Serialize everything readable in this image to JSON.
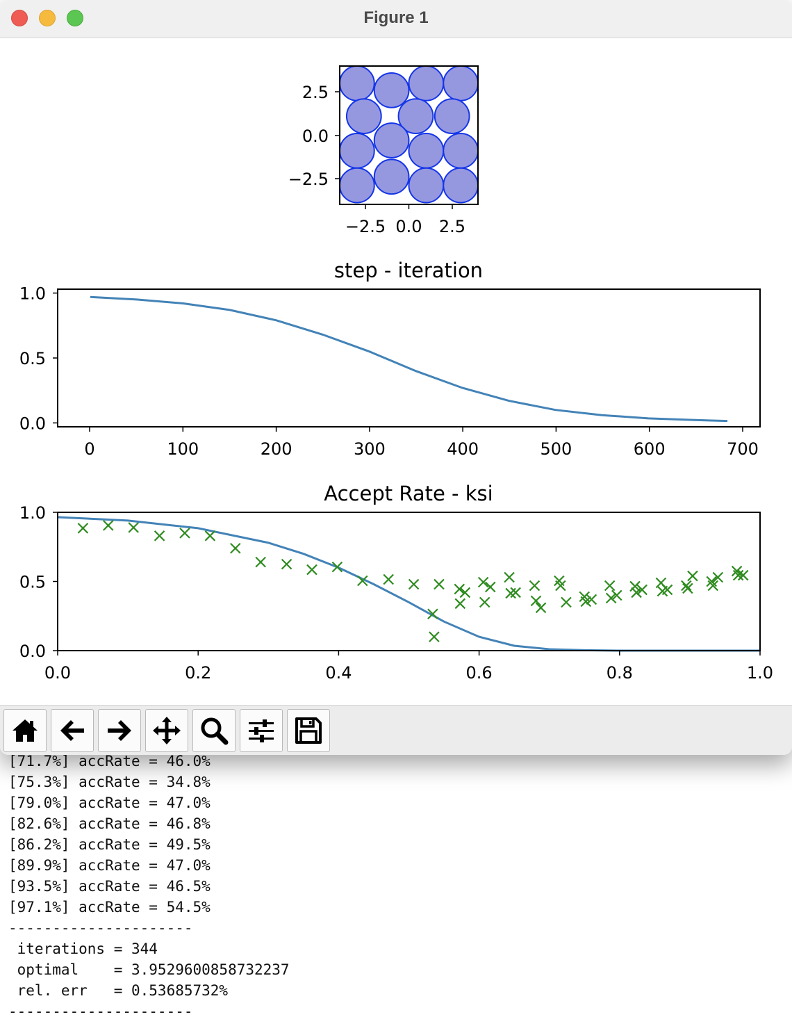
{
  "window": {
    "title": "Figure 1"
  },
  "colors": {
    "bar": "#f0f0f0",
    "line": "#4383b7",
    "disk_fill": "#9598df",
    "disk_edge": "#1535e8",
    "marker": "#2e8b1f"
  },
  "figure": {
    "packing": {
      "xticks": [
        "−2.5",
        "0.0",
        "2.5"
      ],
      "yticks": [
        "2.5",
        "0.0",
        "−2.5"
      ]
    },
    "step_plot": {
      "title": "step - iteration",
      "xticks": [
        "0",
        "100",
        "200",
        "300",
        "400",
        "500",
        "600",
        "700"
      ],
      "yticks": [
        "1.0",
        "0.5",
        "0.0"
      ]
    },
    "accept_plot": {
      "title": "Accept Rate - ksi",
      "xticks": [
        "0.0",
        "0.2",
        "0.4",
        "0.6",
        "0.8",
        "1.0"
      ],
      "yticks": [
        "1.0",
        "0.5",
        "0.0"
      ]
    }
  },
  "chart_data": [
    {
      "type": "scatter",
      "xlim": [
        -4,
        4
      ],
      "ylim": [
        -4,
        4
      ],
      "radius": 1,
      "circles": [
        [
          -3.0,
          3.0
        ],
        [
          -1.0,
          2.6
        ],
        [
          1.0,
          3.0
        ],
        [
          3.0,
          3.0
        ],
        [
          -2.6,
          1.1
        ],
        [
          0.4,
          1.1
        ],
        [
          2.5,
          1.1
        ],
        [
          -3.0,
          -0.9
        ],
        [
          -1.0,
          -0.3
        ],
        [
          1.0,
          -0.9
        ],
        [
          3.0,
          -0.9
        ],
        [
          -1.0,
          -2.4
        ],
        [
          -3.0,
          -2.9
        ],
        [
          1.0,
          -2.9
        ],
        [
          3.0,
          -2.9
        ]
      ]
    },
    {
      "type": "line",
      "title": "step - iteration",
      "xlim": [
        -35,
        720
      ],
      "ylim": [
        -0.03,
        1.03
      ],
      "grid": false,
      "x": [
        0,
        50,
        100,
        150,
        200,
        250,
        300,
        350,
        400,
        450,
        500,
        550,
        600,
        650,
        685
      ],
      "y": [
        0.97,
        0.95,
        0.92,
        0.87,
        0.79,
        0.68,
        0.55,
        0.4,
        0.27,
        0.17,
        0.1,
        0.06,
        0.035,
        0.022,
        0.015
      ]
    },
    {
      "type": "scatter",
      "title": "Accept Rate - ksi",
      "xlim": [
        0,
        1
      ],
      "ylim": [
        0,
        1
      ],
      "grid": false,
      "line": {
        "x": [
          0,
          0.1,
          0.2,
          0.3,
          0.35,
          0.4,
          0.45,
          0.5,
          0.55,
          0.6,
          0.65,
          0.7,
          0.75,
          0.8,
          0.9,
          1.0
        ],
        "y": [
          0.965,
          0.94,
          0.885,
          0.78,
          0.7,
          0.6,
          0.48,
          0.35,
          0.21,
          0.1,
          0.035,
          0.01,
          0.003,
          0.0,
          0.0,
          0.0
        ]
      },
      "points": {
        "x": [
          0.036,
          0.072,
          0.108,
          0.145,
          0.181,
          0.217,
          0.253,
          0.289,
          0.326,
          0.362,
          0.398,
          0.434,
          0.471,
          0.507,
          0.534,
          0.536,
          0.543,
          0.572,
          0.573,
          0.58,
          0.606,
          0.608,
          0.616,
          0.643,
          0.645,
          0.652,
          0.679,
          0.681,
          0.688,
          0.714,
          0.716,
          0.724,
          0.75,
          0.752,
          0.76,
          0.786,
          0.788,
          0.796,
          0.822,
          0.824,
          0.832,
          0.859,
          0.861,
          0.868,
          0.895,
          0.897,
          0.904,
          0.931,
          0.933,
          0.94,
          0.967,
          0.969,
          0.976
        ],
        "y": [
          0.885,
          0.905,
          0.89,
          0.83,
          0.85,
          0.83,
          0.74,
          0.64,
          0.625,
          0.585,
          0.605,
          0.505,
          0.515,
          0.48,
          0.265,
          0.1,
          0.48,
          0.445,
          0.34,
          0.42,
          0.495,
          0.35,
          0.46,
          0.53,
          0.415,
          0.42,
          0.47,
          0.36,
          0.31,
          0.505,
          0.47,
          0.35,
          0.39,
          0.355,
          0.37,
          0.47,
          0.38,
          0.4,
          0.465,
          0.42,
          0.44,
          0.49,
          0.43,
          0.44,
          0.47,
          0.45,
          0.54,
          0.5,
          0.47,
          0.53,
          0.575,
          0.545,
          0.545
        ]
      }
    }
  ],
  "toolbar": {
    "buttons": [
      {
        "name": "home-button",
        "icon": "home-icon"
      },
      {
        "name": "back-button",
        "icon": "arrow-left-icon"
      },
      {
        "name": "forward-button",
        "icon": "arrow-right-icon"
      },
      {
        "name": "pan-button",
        "icon": "move-icon"
      },
      {
        "name": "zoom-button",
        "icon": "magnifier-icon"
      },
      {
        "name": "configure-subplots-button",
        "icon": "sliders-icon"
      },
      {
        "name": "save-button",
        "icon": "floppy-disk-icon"
      }
    ]
  },
  "console": {
    "lines": [
      "[71.7%] accRate = 46.0%",
      "[75.3%] accRate = 34.8%",
      "[79.0%] accRate = 47.0%",
      "[82.6%] accRate = 46.8%",
      "[86.2%] accRate = 49.5%",
      "[89.9%] accRate = 47.0%",
      "[93.5%] accRate = 46.5%",
      "[97.1%] accRate = 54.5%",
      "---------------------",
      " iterations = 344",
      " optimal    = 3.9529600858732237",
      " rel. err   = 0.53685732%",
      "---------------------"
    ]
  }
}
